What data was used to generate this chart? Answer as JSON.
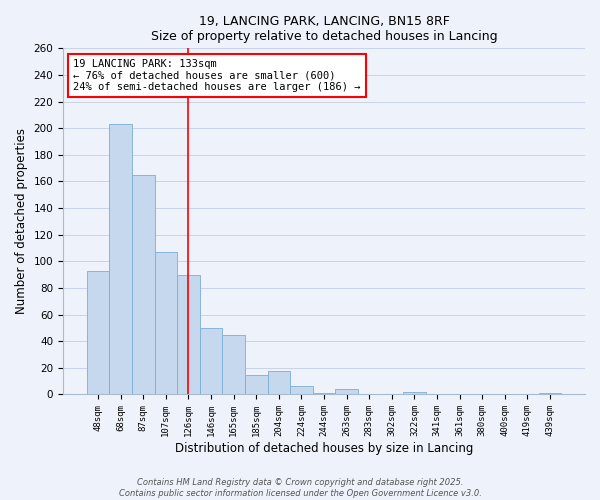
{
  "title": "19, LANCING PARK, LANCING, BN15 8RF",
  "subtitle": "Size of property relative to detached houses in Lancing",
  "xlabel": "Distribution of detached houses by size in Lancing",
  "ylabel": "Number of detached properties",
  "bar_labels": [
    "48sqm",
    "68sqm",
    "87sqm",
    "107sqm",
    "126sqm",
    "146sqm",
    "165sqm",
    "185sqm",
    "204sqm",
    "224sqm",
    "244sqm",
    "263sqm",
    "283sqm",
    "302sqm",
    "322sqm",
    "341sqm",
    "361sqm",
    "380sqm",
    "400sqm",
    "419sqm",
    "439sqm"
  ],
  "bar_values": [
    93,
    203,
    165,
    107,
    90,
    50,
    45,
    15,
    18,
    6,
    1,
    4,
    0,
    0,
    2,
    0,
    0,
    0,
    0,
    0,
    1
  ],
  "bar_color": "#c5d8ee",
  "bar_edge_color": "#7bafd4",
  "grid_color": "#c8d4e8",
  "background_color": "#eef2fa",
  "ylim": [
    0,
    260
  ],
  "yticks": [
    0,
    20,
    40,
    60,
    80,
    100,
    120,
    140,
    160,
    180,
    200,
    220,
    240,
    260
  ],
  "property_size": 133,
  "property_label": "19 LANCING PARK: 133sqm",
  "pct_smaller": 76,
  "n_smaller": 600,
  "pct_larger_semi": 24,
  "n_larger_semi": 186,
  "vline_x": 4.5,
  "footer_line1": "Contains HM Land Registry data © Crown copyright and database right 2025.",
  "footer_line2": "Contains public sector information licensed under the Open Government Licence v3.0."
}
